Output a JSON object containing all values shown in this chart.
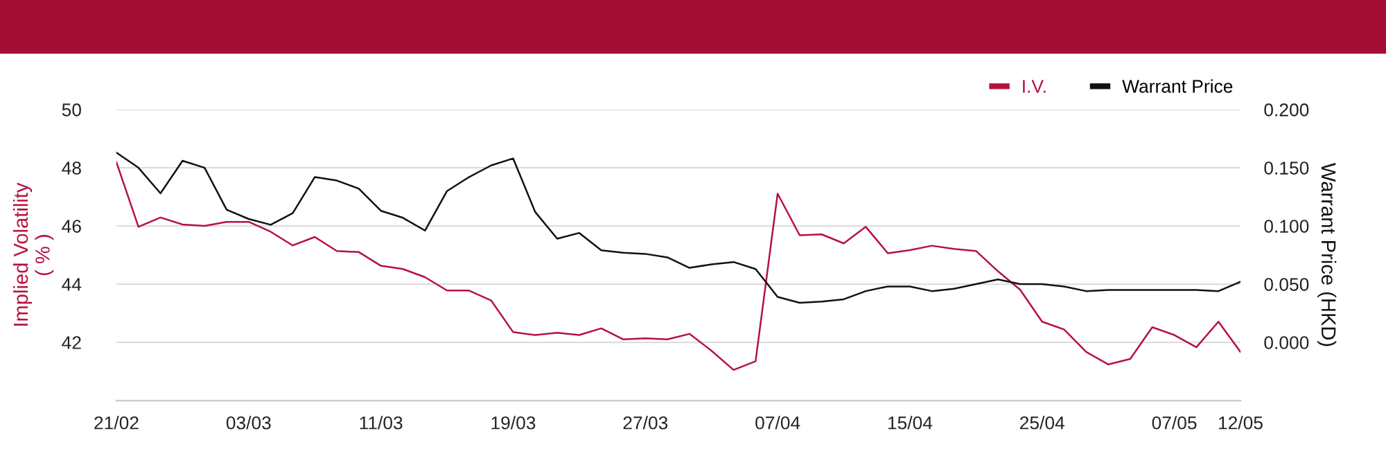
{
  "chart_data": {
    "type": "line",
    "categories": [
      "21/02",
      null,
      null,
      null,
      null,
      null,
      "03/03",
      null,
      null,
      null,
      null,
      null,
      "11/03",
      null,
      null,
      null,
      null,
      null,
      "19/03",
      null,
      null,
      null,
      null,
      null,
      "27/03",
      null,
      null,
      null,
      null,
      null,
      "07/04",
      null,
      null,
      null,
      null,
      null,
      "15/04",
      null,
      null,
      null,
      null,
      null,
      "25/04",
      null,
      null,
      null,
      null,
      null,
      "07/05",
      null,
      null,
      "12/05"
    ],
    "series": [
      {
        "name": "I.V.",
        "color": "#b5123f",
        "values": [
          48.19,
          45.97,
          46.29,
          46.05,
          46.0,
          46.14,
          46.14,
          45.8,
          45.33,
          45.62,
          45.14,
          45.1,
          44.63,
          44.52,
          44.24,
          43.78,
          43.78,
          43.44,
          42.35,
          42.25,
          42.33,
          42.25,
          42.48,
          42.1,
          42.14,
          42.1,
          42.29,
          41.71,
          41.05,
          41.35,
          47.11,
          45.68,
          45.71,
          45.4,
          45.97,
          45.06,
          45.17,
          45.32,
          45.21,
          45.14,
          44.44,
          43.81,
          42.71,
          42.44,
          41.67,
          41.24,
          41.43,
          42.52,
          42.25,
          41.83,
          42.71,
          41.67
        ]
      },
      {
        "name": "Warrant Price",
        "color": "#111111",
        "axis": "y2",
        "values": [
          0.163,
          0.15,
          0.128,
          0.156,
          0.15,
          0.114,
          0.106,
          0.101,
          0.111,
          0.142,
          0.139,
          0.132,
          0.113,
          0.107,
          0.096,
          0.13,
          0.142,
          0.152,
          0.158,
          0.112,
          0.089,
          0.094,
          0.079,
          0.077,
          0.076,
          0.073,
          0.064,
          0.067,
          0.069,
          0.063,
          0.039,
          0.034,
          0.035,
          0.037,
          0.044,
          0.048,
          0.048,
          0.044,
          0.046,
          0.05,
          0.054,
          0.05,
          0.05,
          0.048,
          0.044,
          0.045,
          0.045,
          0.045,
          0.045,
          0.045,
          0.044,
          0.052
        ]
      }
    ],
    "ylabel": "Implied Volatility\n( % )",
    "y2label": "Warrant Price (HKD)",
    "ylim": [
      40,
      50
    ],
    "yticks": [
      {
        "value": 40,
        "label": null
      },
      42,
      44,
      46,
      48,
      50
    ],
    "y2lim": [
      -0.05,
      0.2
    ],
    "y2ticks": [
      {
        "value": -0.05,
        "label": null
      },
      {
        "value": 0,
        "label": "0.000"
      },
      {
        "value": 0.05,
        "label": "0.050"
      },
      {
        "value": 0.1,
        "label": "0.100"
      },
      {
        "value": 0.15,
        "label": "0.150"
      },
      {
        "value": 0.2,
        "label": "0.200"
      }
    ],
    "grid": "y",
    "legend": "top right",
    "marker": "none",
    "line_style": "solid"
  }
}
